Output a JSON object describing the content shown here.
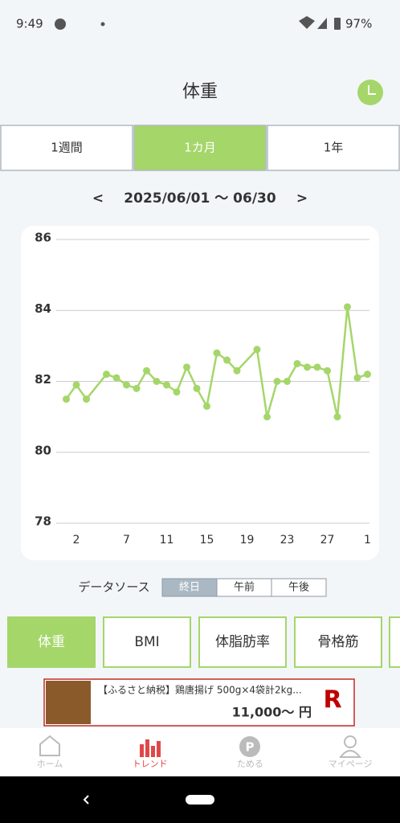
{
  "status_bar": {
    "time": "9:49",
    "battery": "97%"
  },
  "header": {
    "title": "体重"
  },
  "tabs": {
    "options": [
      "1週間",
      "1カ月",
      "1年"
    ],
    "selected": 1
  },
  "date_range": {
    "prev": "<",
    "label": "2025/06/01 〜 06/30",
    "next": ">"
  },
  "chart_data": {
    "type": "line",
    "x": [
      1,
      2,
      3,
      5,
      6,
      7,
      8,
      9,
      10,
      11,
      12,
      13,
      14,
      15,
      16,
      17,
      18,
      20,
      21,
      22,
      23,
      24,
      25,
      26,
      27,
      28,
      29,
      30,
      31
    ],
    "values": [
      81.5,
      81.9,
      81.5,
      82.2,
      82.1,
      81.9,
      81.8,
      82.3,
      82.0,
      81.9,
      81.7,
      82.4,
      81.8,
      81.3,
      82.8,
      82.6,
      82.3,
      82.9,
      81.0,
      82.0,
      82.0,
      82.5,
      82.4,
      82.4,
      82.3,
      81.0,
      84.1,
      82.1,
      82.2
    ],
    "color": "#a5d66a",
    "xlim": [
      0,
      31.2
    ],
    "xticks": [
      2,
      7,
      11,
      15,
      19,
      23,
      27,
      {
        "value": 31,
        "label": "1"
      }
    ],
    "ylim": [
      78,
      86
    ],
    "yticks": [
      78,
      80,
      82,
      84,
      86
    ],
    "grid": true,
    "markers": true
  },
  "data_source": {
    "label": "データソース",
    "options": [
      "終日",
      "午前",
      "午後"
    ],
    "selected": 0
  },
  "metrics": {
    "options": [
      "体重",
      "BMI",
      "体脂肪率",
      "骨格筋"
    ],
    "selected": 0
  },
  "ad": {
    "title": "【ふるさと納税】鶏唐揚げ 500g×4袋計2kg...",
    "price": "11,000〜 円",
    "logo": "R"
  },
  "nav": {
    "options": [
      "ホーム",
      "トレンド",
      "ためる",
      "マイページ"
    ],
    "selected": 1,
    "points_icon": "P"
  }
}
